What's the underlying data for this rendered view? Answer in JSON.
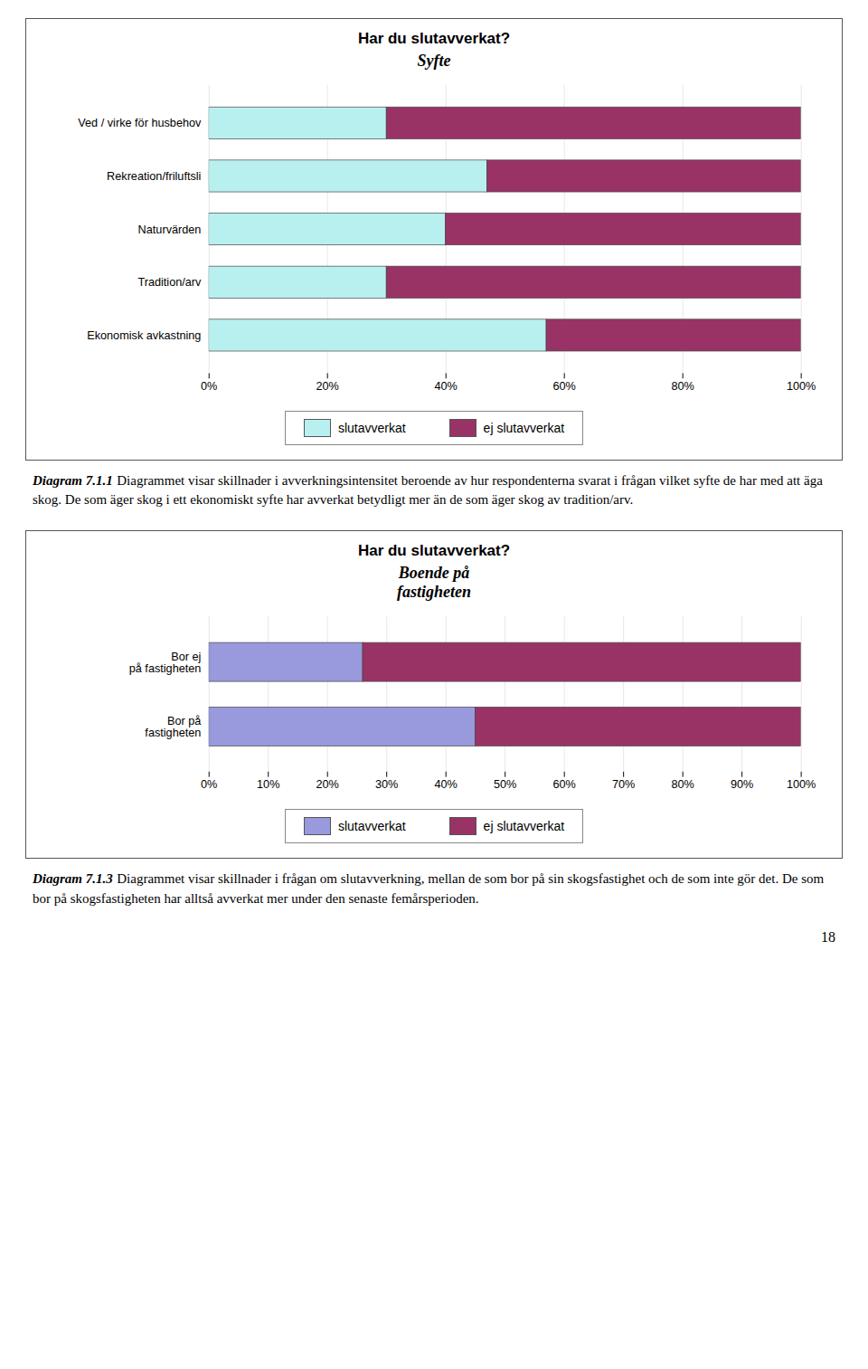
{
  "chart_data": [
    {
      "type": "bar",
      "orientation": "horizontal",
      "stacked": true,
      "grid": true,
      "legend": "bottom",
      "title": "Har du slutavverkat?",
      "subtitle": "Syfte",
      "categories": [
        "Ekonomisk avkastning",
        "Tradition/arv",
        "Naturvärden",
        "Rekreation/friluftsli",
        "Ved / virke för husbehov"
      ],
      "series": [
        {
          "name": "slutavverkat",
          "color": "#b8f0f0",
          "values": [
            57,
            30,
            40,
            47,
            30
          ]
        },
        {
          "name": "ej slutavverkat",
          "color": "#993366",
          "values": [
            43,
            70,
            60,
            53,
            70
          ]
        }
      ],
      "xlim": [
        0,
        100
      ],
      "xticks": [
        {
          "value": 0,
          "label": "0%"
        },
        {
          "value": 20,
          "label": "20%"
        },
        {
          "value": 40,
          "label": "40%"
        },
        {
          "value": 60,
          "label": "60%"
        },
        {
          "value": 80,
          "label": "80%"
        },
        {
          "value": 100,
          "label": "100%"
        }
      ],
      "caption_label": "Diagram 7.1.1",
      "caption": "Diagrammet visar skillnader i avverkningsintensitet beroende av hur respondenterna svarat i frågan vilket syfte de har med att äga skog. De som äger skog i ett ekonomiskt syfte har avverkat betydligt mer än de som äger skog av tradition/arv."
    },
    {
      "type": "bar",
      "orientation": "horizontal",
      "stacked": true,
      "grid": true,
      "legend": "bottom",
      "title": "Har du slutavverkat?",
      "subtitle": "Boende på\nfastigheten",
      "categories": [
        "Bor på\nfastigheten",
        "Bor ej\npå fastigheten"
      ],
      "series": [
        {
          "name": "slutavverkat",
          "color": "#9999dd",
          "values": [
            45,
            26
          ]
        },
        {
          "name": "ej slutavverkat",
          "color": "#993366",
          "values": [
            55,
            74
          ]
        }
      ],
      "xlim": [
        0,
        100
      ],
      "xticks": [
        {
          "value": 0,
          "label": "0%"
        },
        {
          "value": 10,
          "label": "10%"
        },
        {
          "value": 20,
          "label": "20%"
        },
        {
          "value": 30,
          "label": "30%"
        },
        {
          "value": 40,
          "label": "40%"
        },
        {
          "value": 50,
          "label": "50%"
        },
        {
          "value": 60,
          "label": "60%"
        },
        {
          "value": 70,
          "label": "70%"
        },
        {
          "value": 80,
          "label": "80%"
        },
        {
          "value": 90,
          "label": "90%"
        },
        {
          "value": 100,
          "label": "100%"
        }
      ],
      "caption_label": "Diagram 7.1.3",
      "caption": "Diagrammet visar skillnader i frågan om slutavverkning, mellan de som bor på sin skogsfastighet och de som inte gör det. De som bor på skogsfastigheten har alltså avverkat mer under den senaste femårsperioden."
    }
  ],
  "page_number": "18"
}
